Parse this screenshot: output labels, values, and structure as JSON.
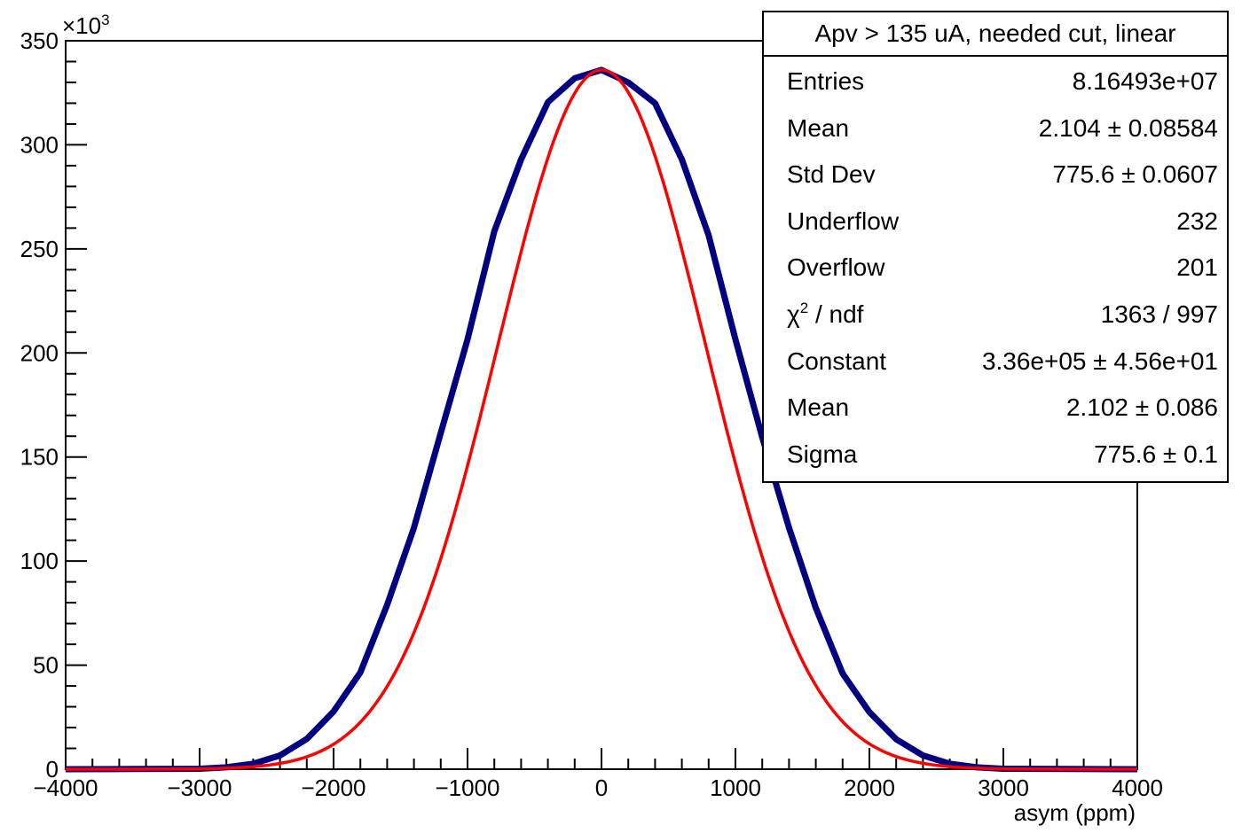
{
  "chart_data": {
    "type": "line",
    "title": "",
    "xlabel": "asym (ppm)",
    "ylabel": "",
    "xlim": [
      -4000,
      4000
    ],
    "ylim": [
      0,
      350
    ],
    "y_multiplier": "×10",
    "y_multiplier_exponent": "3",
    "x_ticks": [
      "−4000",
      "−3000",
      "−2000",
      "−1000",
      "0",
      "1000",
      "2000",
      "3000",
      "4000"
    ],
    "y_ticks": [
      "0",
      "50",
      "100",
      "150",
      "200",
      "250",
      "300",
      "350"
    ],
    "series": [
      {
        "kind": "histogram",
        "color": "#000080",
        "points": [
          [
            -4000,
            0
          ],
          [
            -3500,
            0.1
          ],
          [
            -3000,
            0.2
          ],
          [
            -2800,
            0.9
          ],
          [
            -2600,
            2.6
          ],
          [
            -2400,
            6.6
          ],
          [
            -2200,
            14.5
          ],
          [
            -2000,
            27.7
          ],
          [
            -1800,
            46.5
          ],
          [
            -1600,
            79.0
          ],
          [
            -1400,
            116.0
          ],
          [
            -1200,
            161.5
          ],
          [
            -1000,
            206.5
          ],
          [
            -800,
            258.5
          ],
          [
            -600,
            293.0
          ],
          [
            -400,
            320.5
          ],
          [
            -200,
            332.0
          ],
          [
            0,
            336.0
          ],
          [
            200,
            330.0
          ],
          [
            400,
            320.0
          ],
          [
            600,
            293.0
          ],
          [
            800,
            256.5
          ],
          [
            1000,
            206.5
          ],
          [
            1200,
            159.5
          ],
          [
            1400,
            116.0
          ],
          [
            1600,
            77.5
          ],
          [
            1800,
            46.0
          ],
          [
            2000,
            27.4
          ],
          [
            2200,
            14.4
          ],
          [
            2400,
            6.6
          ],
          [
            2600,
            2.6
          ],
          [
            2800,
            0.9
          ],
          [
            3000,
            0.2
          ],
          [
            3500,
            0.1
          ],
          [
            4000,
            0
          ]
        ]
      },
      {
        "kind": "gaussian_fit",
        "color": "#ff0000",
        "constant_k": 336.0,
        "mean": 2.102,
        "sigma": 775.6
      }
    ]
  },
  "stats": {
    "title": "Apv > 135 uA, needed cut, linear",
    "rows": [
      {
        "name": "Entries",
        "name_sup": "",
        "name_rest": "",
        "value": "8.16493e+07"
      },
      {
        "name": "Mean",
        "name_sup": "",
        "name_rest": "",
        "value": "2.104 ± 0.08584"
      },
      {
        "name": "Std Dev",
        "name_sup": "",
        "name_rest": "",
        "value": "775.6 ± 0.0607"
      },
      {
        "name": "Underflow",
        "name_sup": "",
        "name_rest": "",
        "value": "232"
      },
      {
        "name": "Overflow",
        "name_sup": "",
        "name_rest": "",
        "value": "201"
      },
      {
        "name": "χ",
        "name_sup": "2",
        "name_rest": " / ndf",
        "value": "1363 / 997"
      },
      {
        "name": "Constant",
        "name_sup": "",
        "name_rest": "",
        "value": "3.36e+05 ± 4.56e+01"
      },
      {
        "name": "Mean",
        "name_sup": "",
        "name_rest": "",
        "value": "2.102 ± 0.086"
      },
      {
        "name": "Sigma",
        "name_sup": "",
        "name_rest": "",
        "value": "775.6 ± 0.1"
      }
    ]
  }
}
